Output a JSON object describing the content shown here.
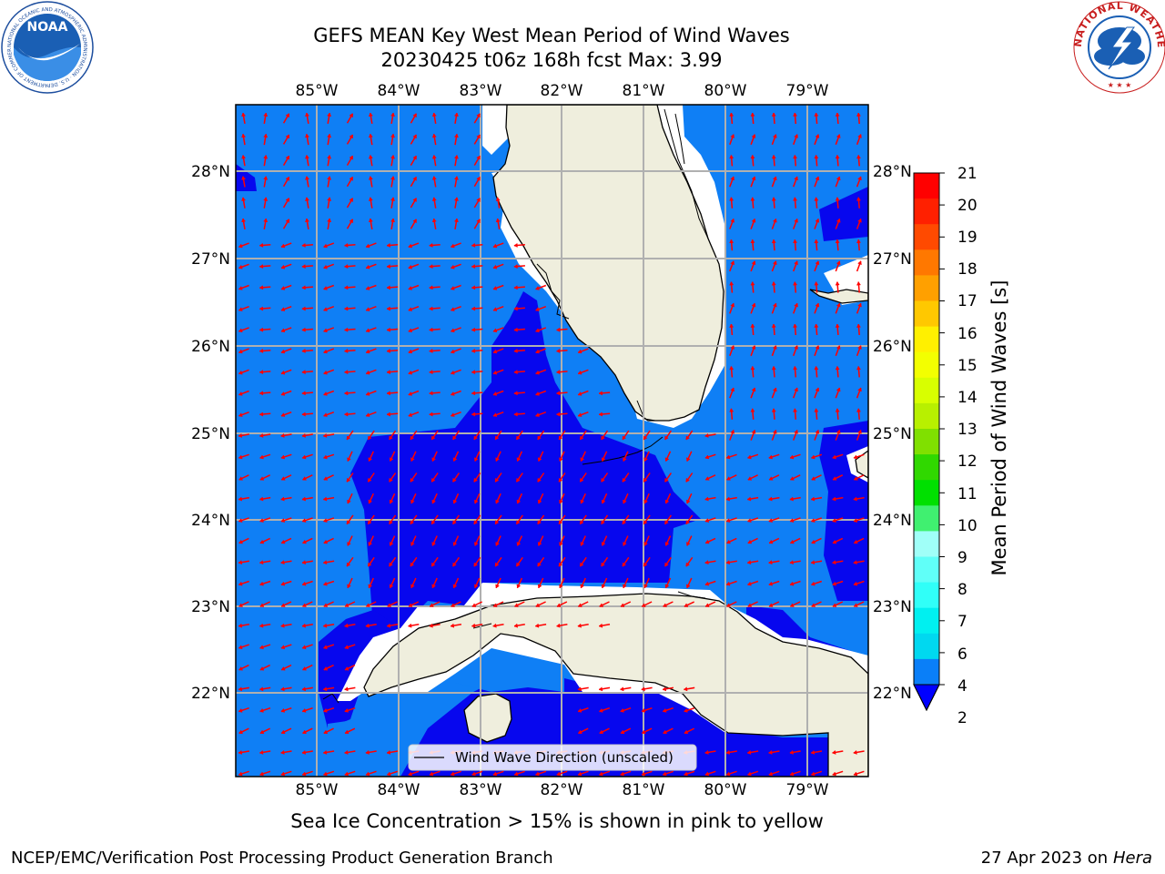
{
  "title": {
    "line1": "GEFS MEAN Key West Mean Period of Wind Waves",
    "line2": "20230425 t06z 168h fcst   Max: 3.99"
  },
  "map": {
    "lon_ticks_top": [
      "85°W",
      "84°W",
      "83°W",
      "82°W",
      "81°W",
      "80°W",
      "79°W"
    ],
    "lon_ticks_bottom": [
      "85°W",
      "84°W",
      "83°W",
      "82°W",
      "81°W",
      "80°W",
      "79°W"
    ],
    "lat_ticks_left": [
      "28°N",
      "27°N",
      "26°N",
      "25°N",
      "24°N",
      "23°N",
      "22°N"
    ],
    "lat_ticks_right": [
      "28°N",
      "27°N",
      "26°N",
      "25°N",
      "24°N",
      "23°N",
      "22°N"
    ],
    "legend_label": "Wind Wave Direction (unscaled)",
    "colors": {
      "ocean_light": "#0f7ff5",
      "ocean_dark": "#0707ee",
      "land": "#efeedd",
      "arrow": "#ff0000",
      "grid": "#b0b0b0"
    }
  },
  "colorbar": {
    "label": "Mean Period of Wind Waves [s]",
    "ticks": [
      "21",
      "20",
      "19",
      "18",
      "17",
      "16",
      "15",
      "14",
      "13",
      "12",
      "11",
      "10",
      "9",
      "8",
      "7",
      "6",
      "4",
      "2"
    ],
    "colors_top_to_bottom": [
      "#ff0000",
      "#ff2000",
      "#ff4a00",
      "#ff7800",
      "#ffa000",
      "#ffc800",
      "#fff000",
      "#f3ff00",
      "#d8ff00",
      "#b8f000",
      "#80e000",
      "#30d800",
      "#00e000",
      "#40f070",
      "#a0fff8",
      "#60fff8",
      "#30fff8",
      "#00f0f0",
      "#00d8f0",
      "#0a7ff8"
    ],
    "under_color": "#0000ff"
  },
  "footer": {
    "note": "Sea Ice Concentration > 15% is shown in pink to yellow",
    "left": "NCEP/EMC/Verification Post Processing Product Generation Branch",
    "date": "27 Apr 2023 on ",
    "machine": "Hera"
  },
  "logos": {
    "noaa_text": "NOAA",
    "noaa_ring": "NATIONAL OCEANIC AND ATMOSPHERIC ADMINISTRATION · U.S. DEPARTMENT OF COMMERCE",
    "nws_ring": "NATIONAL WEATHER SERVICE"
  }
}
